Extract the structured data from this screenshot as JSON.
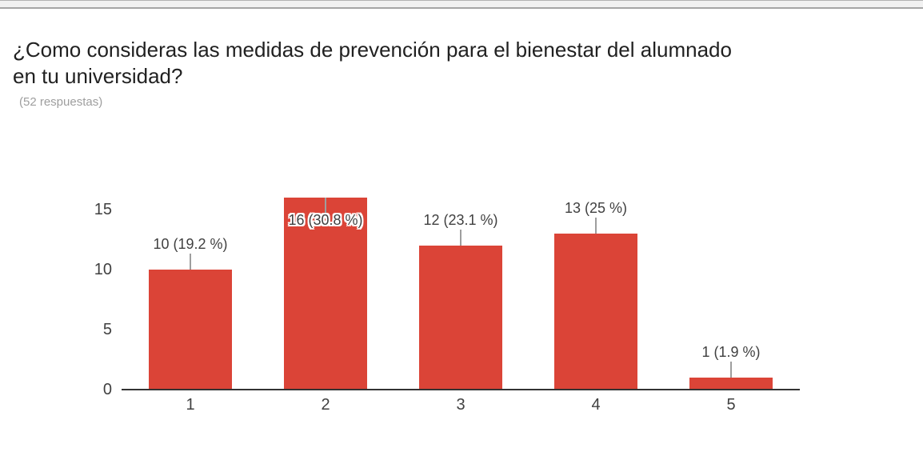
{
  "header": {
    "title": "¿Como consideras las medidas de prevención para el bienestar del alumnado\nen tu universidad?",
    "responses_label": "(52 respuestas)"
  },
  "colors": {
    "bar": "#db4437",
    "annotation_text": "#404040",
    "axis_text": "#404040",
    "baseline": "#333333",
    "stem": "#9e9e9e",
    "subtitle_text": "#9e9e9e",
    "scrollbar_track": "#f1f1f1",
    "scrollbar_border": "#a6a6a6"
  },
  "chart_data": {
    "type": "bar",
    "title": "¿Como consideras las medidas de prevención para el bienestar del alumnado en tu universidad?",
    "subtitle": "(52 respuestas)",
    "total_responses": 52,
    "categories": [
      "1",
      "2",
      "3",
      "4",
      "5"
    ],
    "values": [
      10,
      16,
      12,
      13,
      1
    ],
    "percentages": [
      19.2,
      30.8,
      23.1,
      25,
      1.9
    ],
    "annotations": [
      "10 (19.2 %)",
      "16 (30.8 %)",
      "12 (23.1 %)",
      "13 (25 %)",
      "1 (1.9 %)"
    ],
    "yticks": [
      0,
      5,
      10,
      15
    ],
    "ylim": [
      0,
      16
    ],
    "xlabel": "",
    "ylabel": "",
    "grid": false,
    "legend": "none",
    "bar_color": "#db4437"
  }
}
